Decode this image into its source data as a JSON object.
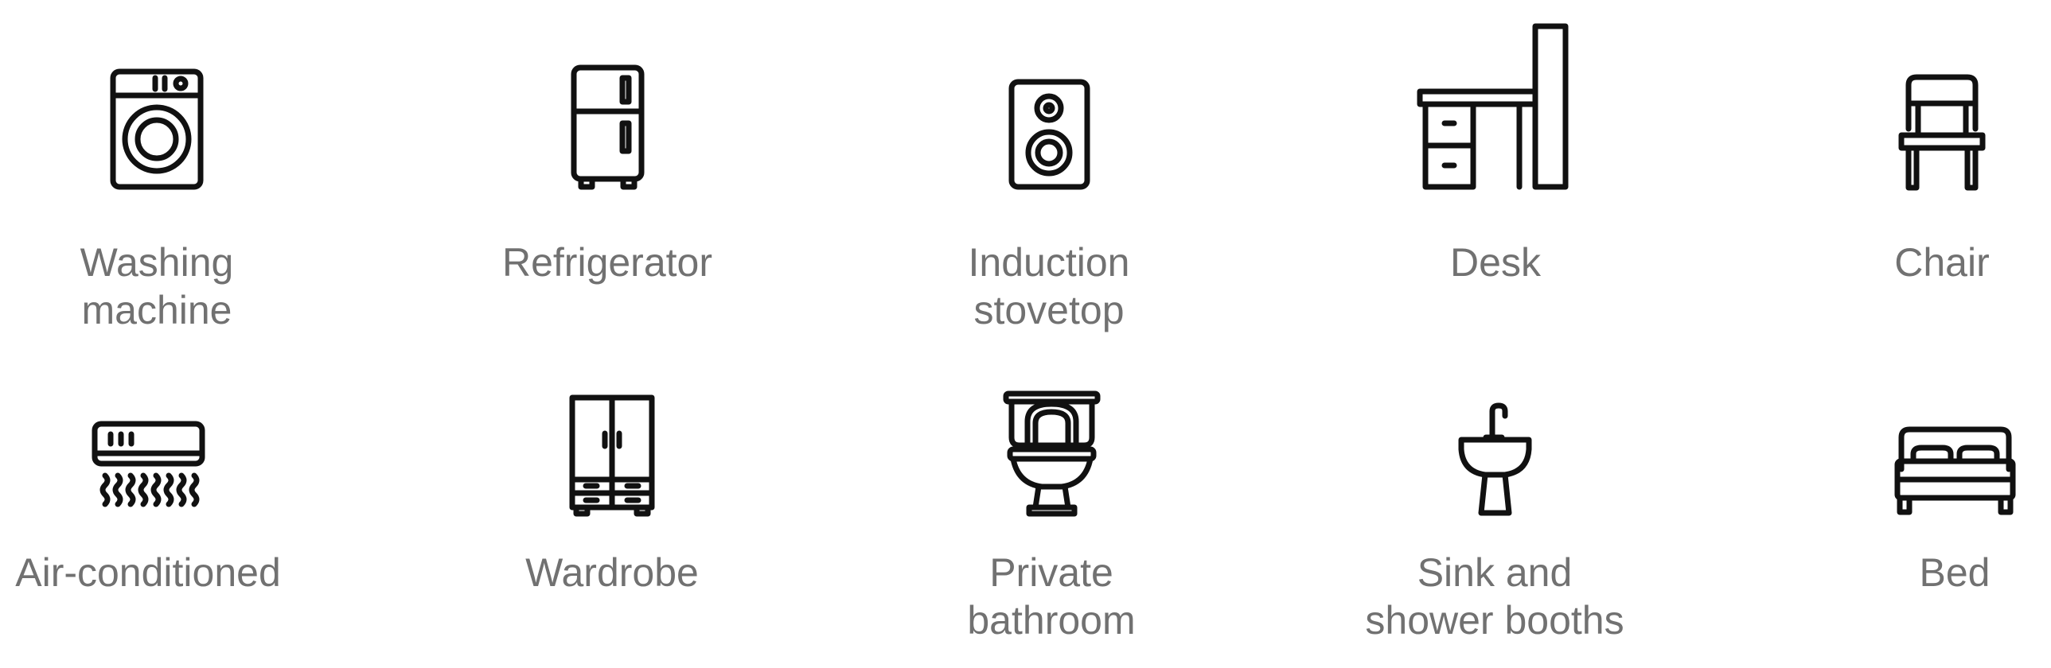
{
  "amenities": [
    {
      "label": "Washing\nmachine",
      "icon": "washing-machine-icon"
    },
    {
      "label": "Refrigerator",
      "icon": "refrigerator-icon"
    },
    {
      "label": "Induction\nstovetop",
      "icon": "speaker-icon"
    },
    {
      "label": "Desk",
      "icon": "desk-icon"
    },
    {
      "label": "Chair",
      "icon": "chair-icon"
    },
    {
      "label": "Air-conditioned",
      "icon": "air-conditioner-icon"
    },
    {
      "label": "Wardrobe",
      "icon": "wardrobe-icon"
    },
    {
      "label": "Private\nbathroom",
      "icon": "toilet-icon"
    },
    {
      "label": "Sink and\nshower booths",
      "icon": "sink-icon"
    },
    {
      "label": "Bed",
      "icon": "bed-icon"
    }
  ],
  "colors": {
    "label_text": "#717171",
    "icon_stroke": "#111111",
    "background": "#ffffff"
  }
}
